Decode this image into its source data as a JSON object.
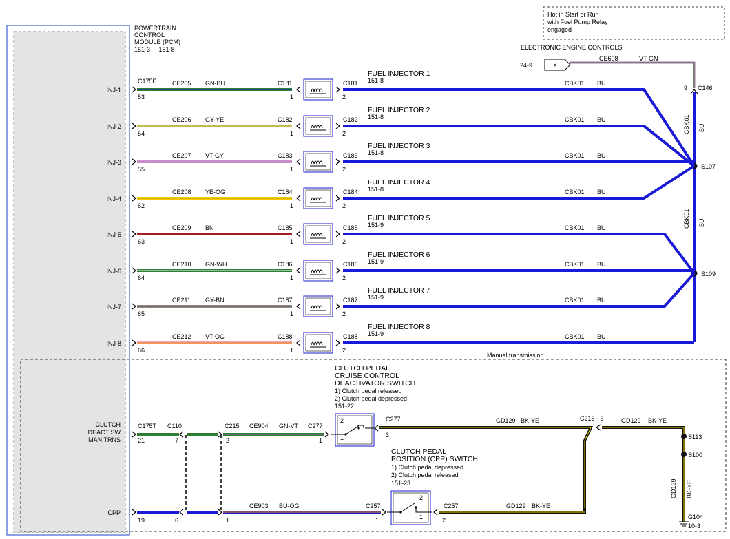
{
  "pcm": {
    "title_lines": [
      "POWERTRAIN",
      "CONTROL",
      "MODULE (PCM)"
    ],
    "refs": "151-3     151-8",
    "pin_connector": "C175E",
    "switch_connector": "C175T"
  },
  "note_box": [
    "Hot in Start or Run",
    "with Fuel Pump Relay",
    "engaged"
  ],
  "eec": {
    "title": "ELECTRONIC ENGINE CONTROLS",
    "ref": "24-9",
    "x_label": "X",
    "circuit": "CE608",
    "color": "VT-GN",
    "pin": "9",
    "connector": "C146"
  },
  "colors": {
    "pcm_border": "#4060d0",
    "inj_power": "#1a1ad6",
    "ground": "#111111",
    "switch_green": "#2e7d32"
  },
  "injectors": [
    {
      "pcm_label": "INJ-1",
      "pcm_pin": "53",
      "circuit": "CE205",
      "wire_color": "GN-BU",
      "connector": "C181",
      "name": "FUEL INJECTOR 1",
      "ref": "151-8",
      "feed_circuit": "CBK01",
      "feed_color": "BU",
      "stripe": "#2e7d32",
      "stripe2": "#1a1ad6"
    },
    {
      "pcm_label": "INJ-2",
      "pcm_pin": "54",
      "circuit": "CE206",
      "wire_color": "GY-YE",
      "connector": "C182",
      "name": "FUEL INJECTOR 2",
      "ref": "151-8",
      "feed_circuit": "CBK01",
      "feed_color": "BU",
      "stripe": "#a0a0a0",
      "stripe2": "#e6d200"
    },
    {
      "pcm_label": "INJ-3",
      "pcm_pin": "55",
      "circuit": "CE207",
      "wire_color": "VT-GY",
      "connector": "C183",
      "name": "FUEL INJECTOR 3",
      "ref": "151-8",
      "feed_circuit": "CBK01",
      "feed_color": "BU",
      "stripe": "#d48ad4",
      "stripe2": "#a0a0a0"
    },
    {
      "pcm_label": "INJ-4",
      "pcm_pin": "62",
      "circuit": "CE208",
      "wire_color": "YE-OG",
      "connector": "C184",
      "name": "FUEL INJECTOR 4",
      "ref": "151-8",
      "feed_circuit": "CBK01",
      "feed_color": "BU",
      "stripe": "#e6d200",
      "stripe2": "#f08a00"
    },
    {
      "pcm_label": "INJ-5",
      "pcm_pin": "63",
      "circuit": "CE209",
      "wire_color": "BN",
      "connector": "C185",
      "name": "FUEL INJECTOR 5",
      "ref": "151-9",
      "feed_circuit": "CBK01",
      "feed_color": "BU",
      "stripe": "#a02020",
      "stripe2": "#a02020"
    },
    {
      "pcm_label": "INJ-6",
      "pcm_pin": "64",
      "circuit": "CE210",
      "wire_color": "GN-WH",
      "connector": "C186",
      "name": "FUEL INJECTOR 6",
      "ref": "151-9",
      "feed_circuit": "CBK01",
      "feed_color": "BU",
      "stripe": "#2e7d32",
      "stripe2": "#ffffff"
    },
    {
      "pcm_label": "INJ-7",
      "pcm_pin": "65",
      "circuit": "CE211",
      "wire_color": "GY-BN",
      "connector": "C187",
      "name": "FUEL INJECTOR 7",
      "ref": "151-9",
      "feed_circuit": "CBK01",
      "feed_color": "BU",
      "stripe": "#8a8a8a",
      "stripe2": "#7a4a2a"
    },
    {
      "pcm_label": "INJ-8",
      "pcm_pin": "66",
      "circuit": "CE212",
      "wire_color": "VT-OG",
      "connector": "C188",
      "name": "FUEL INJECTOR 8",
      "ref": "151-9",
      "feed_circuit": "CBK01",
      "feed_color": "BU",
      "stripe": "#f2a0c0",
      "stripe2": "#f08a00"
    }
  ],
  "injector_pins": {
    "in": "1",
    "out": "2"
  },
  "splices": [
    {
      "label": "S107",
      "vertical_circuit": "CBK01",
      "vertical_color": "BU"
    },
    {
      "label": "S109",
      "vertical_circuit": "CBK01",
      "vertical_color": "BU"
    }
  ],
  "manual_trans": {
    "label": "Manual transmission",
    "clutch_deact": {
      "pcm_label_lines": [
        "CLUTCH",
        "DEACT SW",
        "MAN TRNS"
      ],
      "pcm_pin": "21",
      "c110": "C110",
      "c110_pin": "7",
      "c215": "C215",
      "c215_pin": "2",
      "circuit": "CE904",
      "wire_color": "GN-VT",
      "c277": "C277",
      "c277_pin": "1",
      "switch_title": [
        "CLUTCH PEDAL",
        "CRUISE CONTROL",
        "DEACTIVATOR SWITCH"
      ],
      "switch_states": [
        "1) Clutch pedal released",
        "2) Clutch pedal depressed"
      ],
      "switch_ref": "151-22",
      "switch_pos_top": "2",
      "switch_pos_bottom": "1",
      "out_connector": "C277",
      "out_pin": "3",
      "gnd_circuit": "GD129",
      "gnd_color": "BK-YE"
    },
    "cpp": {
      "pcm_label": "CPP",
      "pcm_pin": "19",
      "c110_pin": "6",
      "c215_pin": "1",
      "circuit": "CE903",
      "wire_color": "BU-OG",
      "c257": "C257",
      "c257_pin": "1",
      "switch_title": [
        "CLUTCH PEDAL",
        "POSITION (CPP) SWITCH"
      ],
      "switch_states": [
        "1) Clutch pedal depressed",
        "2) Clutch pedal released"
      ],
      "switch_ref": "151-23",
      "switch_pos_top": "2",
      "switch_pos_bottom": "1",
      "out_connector": "C257",
      "out_pin": "2",
      "gnd_circuit": "GD129",
      "gnd_color": "BK-YE"
    },
    "c215_3": "C215 - 3",
    "right_gnd_circuit": "GD129",
    "right_gnd_color": "BK-YE",
    "s113": "S113",
    "s100": "S100",
    "vertical_gnd_circuit": "GD129",
    "vertical_gnd_color": "BK-YE",
    "ground": "G104",
    "ground_ref": "10-3"
  }
}
